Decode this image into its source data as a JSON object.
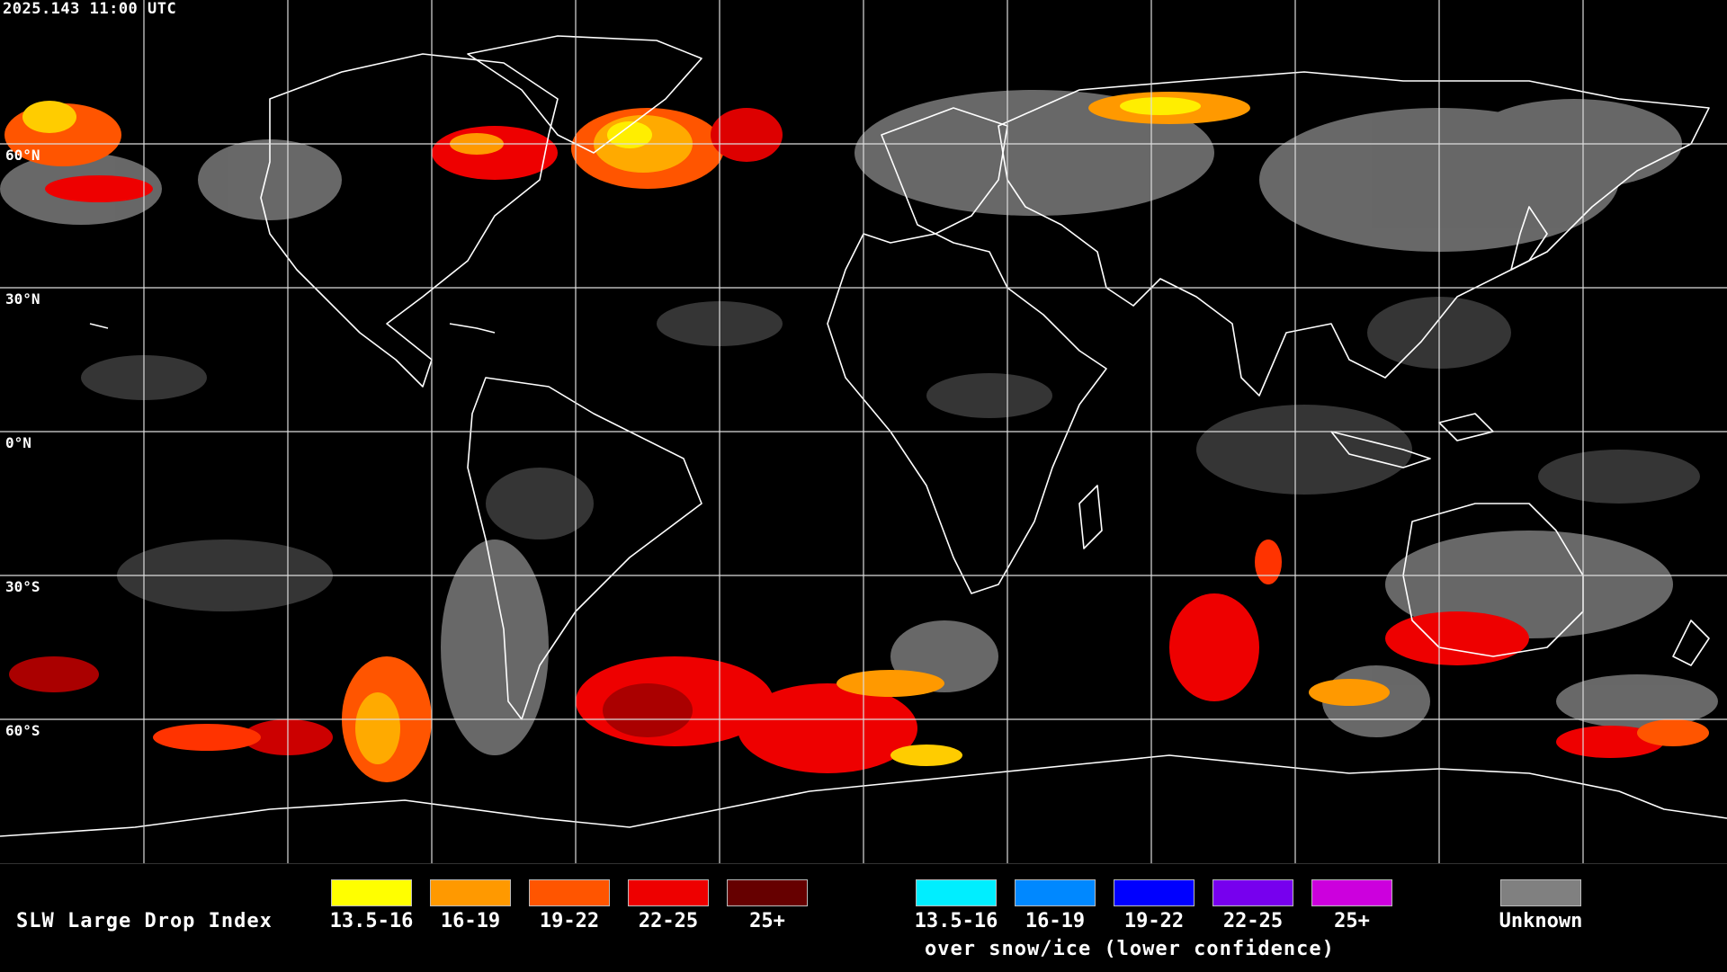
{
  "timestamp": "2025.143 11:00 UTC",
  "lat_labels": [
    "60°N",
    "30°N",
    "0°N",
    "30°S",
    "60°S"
  ],
  "legend": {
    "title": "SLW Large Drop Index",
    "groups": [
      {
        "label": "13.5-16",
        "color": "#ffff00"
      },
      {
        "label": "16-19",
        "color": "#ff9900"
      },
      {
        "label": "19-22",
        "color": "#ff5500"
      },
      {
        "label": "22-25",
        "color": "#ee0000"
      },
      {
        "label": "25+",
        "color": "#660000"
      }
    ],
    "snow_groups": [
      {
        "label": "13.5-16",
        "color": "#00eeff"
      },
      {
        "label": "16-19",
        "color": "#0088ff"
      },
      {
        "label": "19-22",
        "color": "#0000ff"
      },
      {
        "label": "22-25",
        "color": "#7700ee"
      },
      {
        "label": "25+",
        "color": "#cc00dd"
      }
    ],
    "snow_caption": "over snow/ice (lower confidence)",
    "unknown": {
      "label": "Unknown",
      "color": "#808080"
    }
  }
}
